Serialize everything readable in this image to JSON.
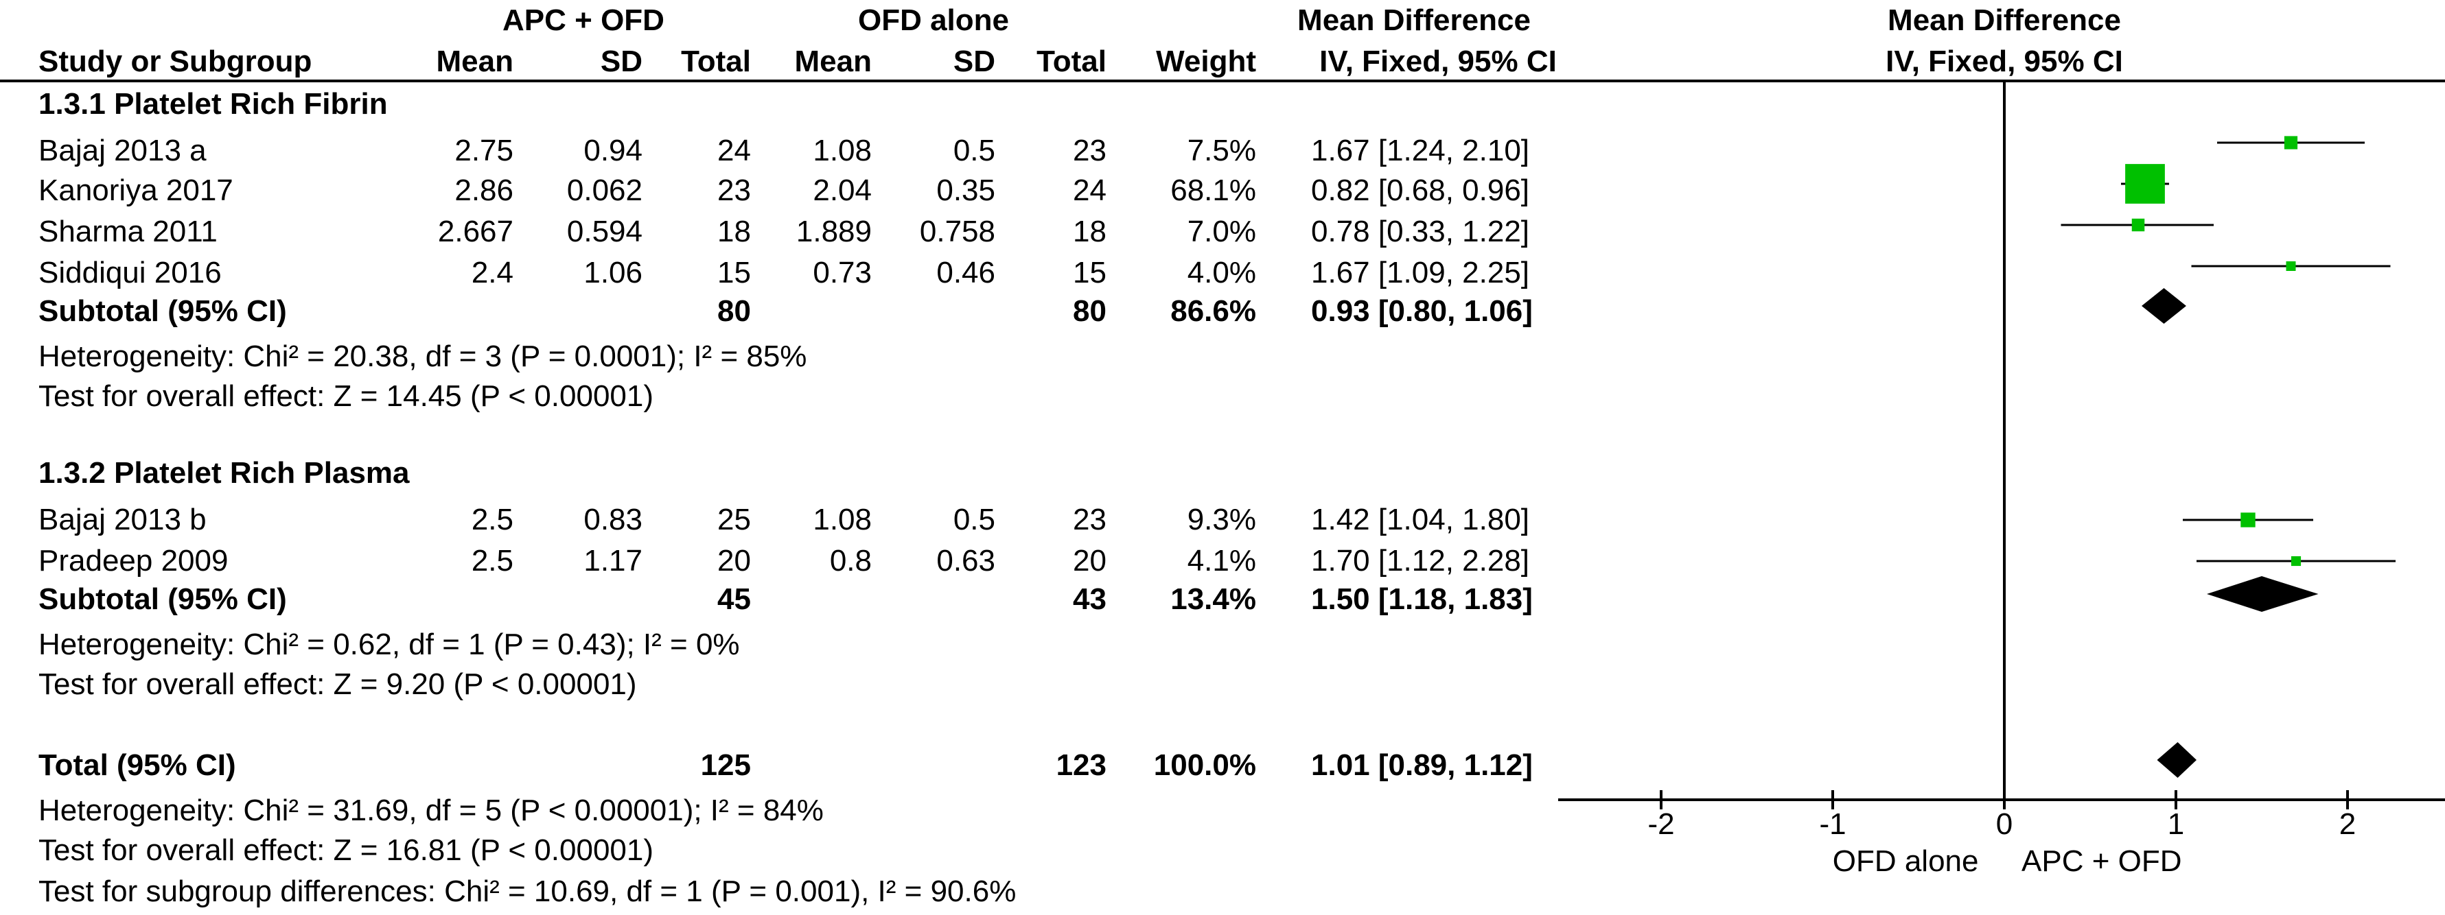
{
  "header": {
    "group1": "APC + OFD",
    "group2": "OFD alone",
    "md_title": "Mean Difference",
    "md_method": "IV, Fixed, 95% CI",
    "plot_title": "Mean Difference",
    "plot_method": "IV, Fixed, 95% CI",
    "cols": {
      "study": "Study or Subgroup",
      "mean1": "Mean",
      "sd1": "SD",
      "total1": "Total",
      "mean2": "Mean",
      "sd2": "SD",
      "total2": "Total",
      "weight": "Weight"
    }
  },
  "subgroups": [
    {
      "title": "1.3.1 Platelet Rich Fibrin",
      "studies": [
        {
          "name": "Bajaj 2013 a",
          "mean1": "2.75",
          "sd1": "0.94",
          "total1": "24",
          "mean2": "1.08",
          "sd2": "0.5",
          "total2": "23",
          "weight": "7.5%",
          "ci": "1.67 [1.24, 2.10]"
        },
        {
          "name": "Kanoriya 2017",
          "mean1": "2.86",
          "sd1": "0.062",
          "total1": "23",
          "mean2": "2.04",
          "sd2": "0.35",
          "total2": "24",
          "weight": "68.1%",
          "ci": "0.82 [0.68, 0.96]"
        },
        {
          "name": "Sharma 2011",
          "mean1": "2.667",
          "sd1": "0.594",
          "total1": "18",
          "mean2": "1.889",
          "sd2": "0.758",
          "total2": "18",
          "weight": "7.0%",
          "ci": "0.78 [0.33, 1.22]"
        },
        {
          "name": "Siddiqui 2016",
          "mean1": "2.4",
          "sd1": "1.06",
          "total1": "15",
          "mean2": "0.73",
          "sd2": "0.46",
          "total2": "15",
          "weight": "4.0%",
          "ci": "1.67 [1.09, 2.25]"
        }
      ],
      "subtotal": {
        "label": "Subtotal (95% CI)",
        "total1": "80",
        "total2": "80",
        "weight": "86.6%",
        "ci": "0.93 [0.80, 1.06]"
      },
      "heterogeneity": "Heterogeneity: Chi² = 20.38, df = 3 (P = 0.0001); I² = 85%",
      "overall": "Test for overall effect: Z = 14.45 (P < 0.00001)"
    },
    {
      "title": "1.3.2 Platelet Rich Plasma",
      "studies": [
        {
          "name": "Bajaj  2013 b",
          "mean1": "2.5",
          "sd1": "0.83",
          "total1": "25",
          "mean2": "1.08",
          "sd2": "0.5",
          "total2": "23",
          "weight": "9.3%",
          "ci": "1.42 [1.04, 1.80]"
        },
        {
          "name": "Pradeep 2009",
          "mean1": "2.5",
          "sd1": "1.17",
          "total1": "20",
          "mean2": "0.8",
          "sd2": "0.63",
          "total2": "20",
          "weight": "4.1%",
          "ci": "1.70 [1.12, 2.28]"
        }
      ],
      "subtotal": {
        "label": "Subtotal (95% CI)",
        "total1": "45",
        "total2": "43",
        "weight": "13.4%",
        "ci": "1.50 [1.18, 1.83]"
      },
      "heterogeneity": "Heterogeneity: Chi² = 0.62, df = 1 (P = 0.43); I² = 0%",
      "overall": "Test for overall effect: Z = 9.20 (P < 0.00001)"
    }
  ],
  "total": {
    "label": "Total (95% CI)",
    "total1": "125",
    "total2": "123",
    "weight": "100.0%",
    "ci": "1.01 [0.89, 1.12]",
    "heterogeneity": "Heterogeneity: Chi² = 31.69, df = 5 (P < 0.00001); I² = 84%",
    "overall": "Test for overall effect: Z = 16.81 (P < 0.00001)",
    "subgroup_diff": "Test for subgroup differences: Chi² = 10.69, df = 1 (P = 0.001), I² = 90.6%"
  },
  "chart_data": {
    "type": "forest",
    "xlim": [
      -2.6,
      2.6
    ],
    "ticks": [
      -2,
      -1,
      0,
      1,
      2
    ],
    "tick_labels": [
      "-2",
      "-1",
      "0",
      "1",
      "2"
    ],
    "favours_left": "OFD alone",
    "favours_right": "APC + OFD",
    "colors": {
      "study_marker": "#00c000",
      "diamond": "#000000",
      "line": "#000000"
    },
    "studies": [
      {
        "name": "Bajaj 2013 a",
        "md": 1.67,
        "lo": 1.24,
        "hi": 2.1,
        "weight": 7.5
      },
      {
        "name": "Kanoriya 2017",
        "md": 0.82,
        "lo": 0.68,
        "hi": 0.96,
        "weight": 68.1
      },
      {
        "name": "Sharma 2011",
        "md": 0.78,
        "lo": 0.33,
        "hi": 1.22,
        "weight": 7.0
      },
      {
        "name": "Siddiqui 2016",
        "md": 1.67,
        "lo": 1.09,
        "hi": 2.25,
        "weight": 4.0
      },
      {
        "name": "Bajaj  2013 b",
        "md": 1.42,
        "lo": 1.04,
        "hi": 1.8,
        "weight": 9.3
      },
      {
        "name": "Pradeep 2009",
        "md": 1.7,
        "lo": 1.12,
        "hi": 2.28,
        "weight": 4.1
      }
    ],
    "subtotals": [
      {
        "label": "Subtotal (95% CI)",
        "md": 0.93,
        "lo": 0.8,
        "hi": 1.06
      },
      {
        "label": "Subtotal (95% CI)",
        "md": 1.5,
        "lo": 1.18,
        "hi": 1.83
      }
    ],
    "overall": {
      "label": "Total (95% CI)",
      "md": 1.01,
      "lo": 0.89,
      "hi": 1.12
    }
  }
}
